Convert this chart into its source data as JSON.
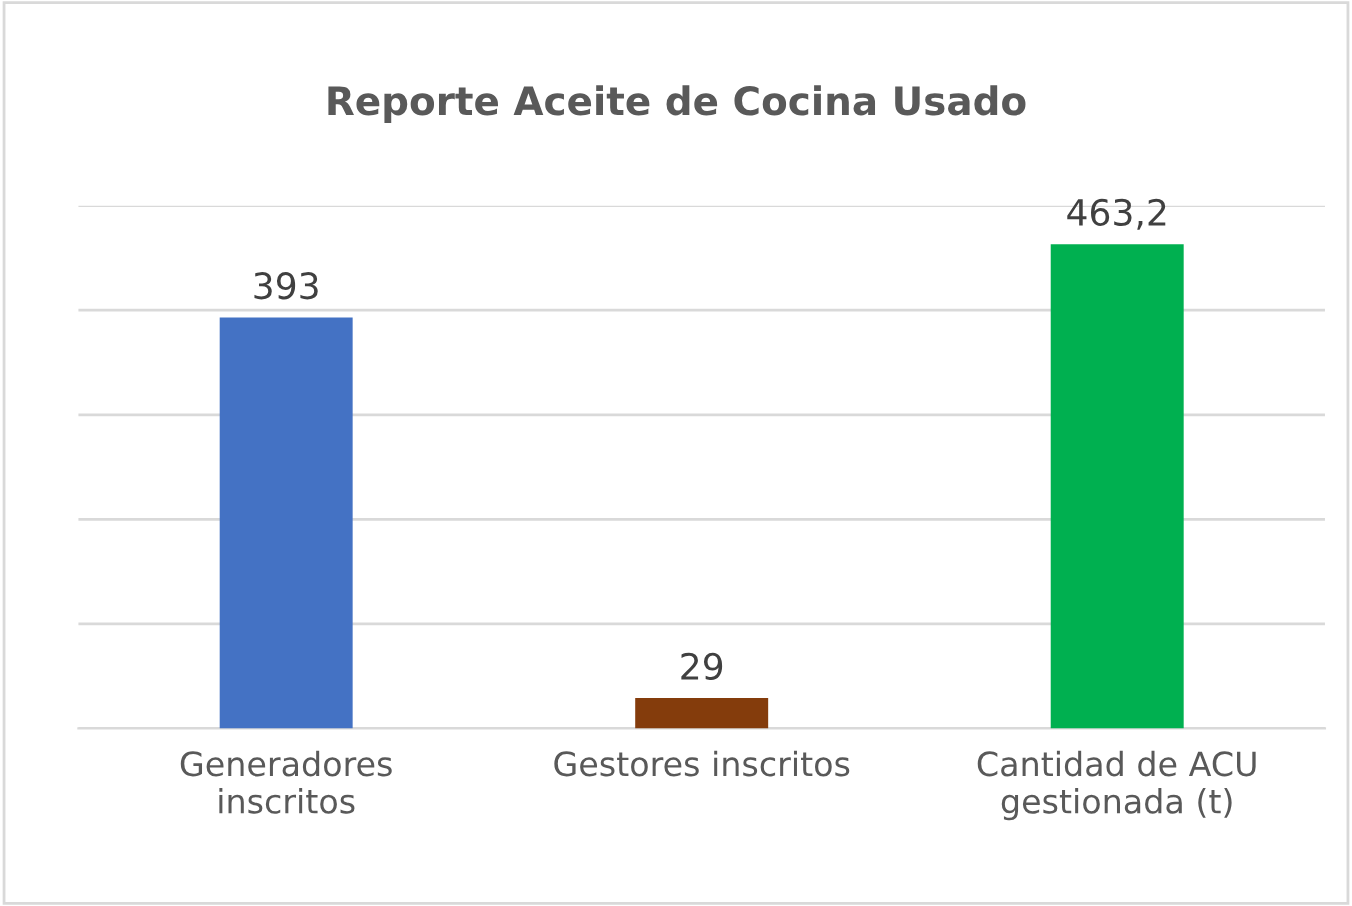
{
  "chart_data": {
    "type": "bar",
    "title": "Reporte Aceite de Cocina Usado",
    "categories": [
      "Generadores\ninscritos",
      "Gestores inscritos",
      "Cantidad de ACU\ngestionada (t)"
    ],
    "values": [
      393,
      29,
      463.2
    ],
    "colors": [
      "#4472c4",
      "#843c0c",
      "#00b050"
    ],
    "value_labels": [
      "393",
      "29",
      "463,2"
    ],
    "ylim": [
      0,
      500
    ],
    "yticks": [
      {
        "value": 0,
        "label": null
      },
      {
        "value": 100,
        "label": null
      },
      {
        "value": 200,
        "label": null
      },
      {
        "value": 300,
        "label": null
      },
      {
        "value": 400,
        "label": null
      },
      {
        "value": 500,
        "label": null
      }
    ],
    "grid": "y",
    "tick_labels": "x",
    "legend": false
  }
}
